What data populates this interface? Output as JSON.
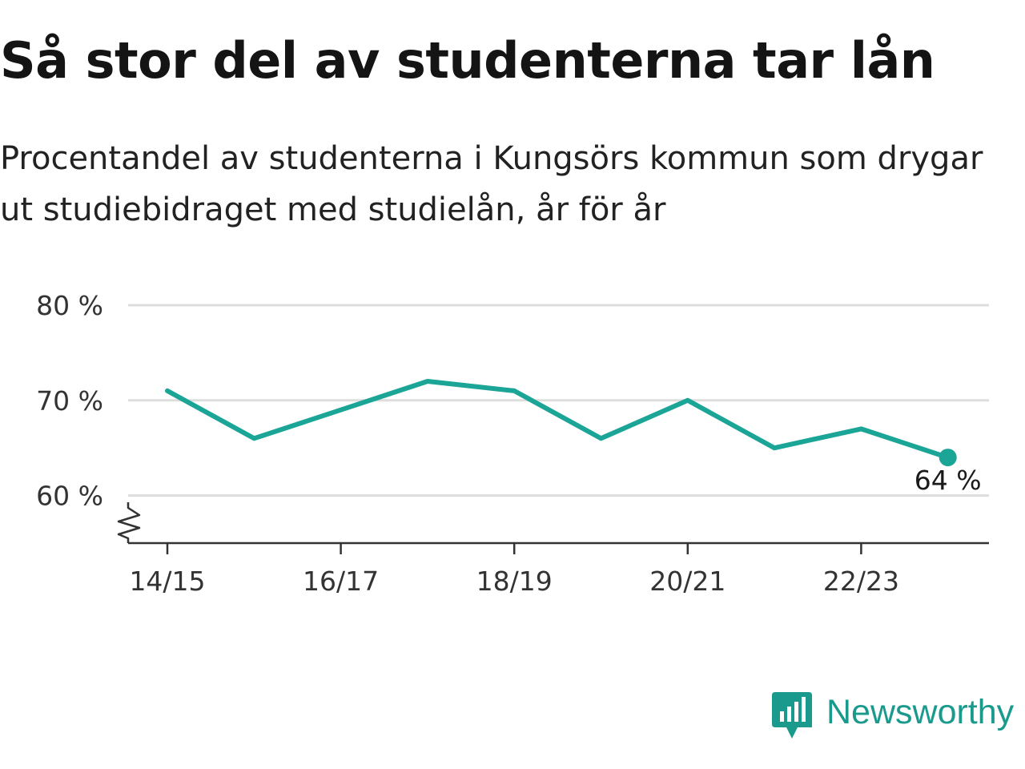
{
  "title": "Så stor del av studenterna tar lån",
  "subtitle": "Procentandel av studenterna i Kungsörs kommun som drygar ut studiebidraget med studielån, år för år",
  "brand": {
    "name": "Newsworthy",
    "color": "#1a9a8d",
    "icon": "newsworthy-logo-icon"
  },
  "colors": {
    "line": "#1aa596",
    "grid": "#dddddd",
    "axis": "#333333"
  },
  "chart_data": {
    "type": "line",
    "x": [
      "14/15",
      "15/16",
      "16/17",
      "17/18",
      "18/19",
      "19/20",
      "20/21",
      "21/22",
      "22/23",
      "23/24"
    ],
    "x_tick_labels": [
      "14/15",
      "16/17",
      "18/19",
      "20/21",
      "22/23"
    ],
    "series": [
      {
        "values": [
          71,
          66,
          69,
          72,
          71,
          66,
          70,
          65,
          67,
          64
        ]
      }
    ],
    "y_ticks": [
      60,
      70,
      80
    ],
    "y_tick_labels": [
      "60 %",
      "70 %",
      "80 %"
    ],
    "ylim": [
      55,
      80
    ],
    "y_axis_break": true,
    "grid": true,
    "end_label": "64 %",
    "xlabel": "",
    "ylabel": ""
  }
}
